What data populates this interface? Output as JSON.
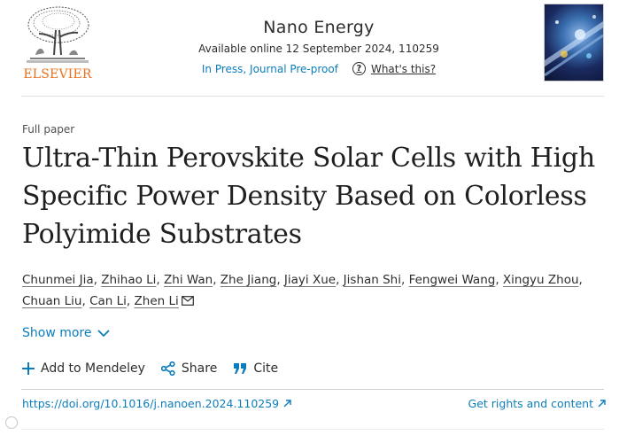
{
  "header": {
    "publisher": "ELSEVIER",
    "journal": "Nano Energy",
    "availability": "Available online 12 September 2024, 110259",
    "status": "In Press, Journal Pre-proof",
    "whats_this": "What's this?"
  },
  "article": {
    "type": "Full paper",
    "title": "Ultra-Thin Perovskite Solar Cells with High Specific Power Density Based on Colorless Polyimide Substrates",
    "authors": [
      "Chunmei Jia",
      "Zhihao Li",
      "Zhi Wan",
      "Zhe Jiang",
      "Jiayi Xue",
      "Jishan Shi",
      "Fengwei Wang",
      "Xingyu Zhou",
      "Chuan Liu",
      "Can Li",
      "Zhen Li"
    ],
    "show_more": "Show more"
  },
  "actions": {
    "mendeley": "Add to Mendeley",
    "share": "Share",
    "cite": "Cite"
  },
  "footer": {
    "doi": "https://doi.org/10.1016/j.nanoen.2024.110259",
    "rights": "Get rights and content"
  },
  "colors": {
    "link": "#0c7dbb",
    "publisher_orange": "#e9711c",
    "text": "#1f1f1f"
  }
}
